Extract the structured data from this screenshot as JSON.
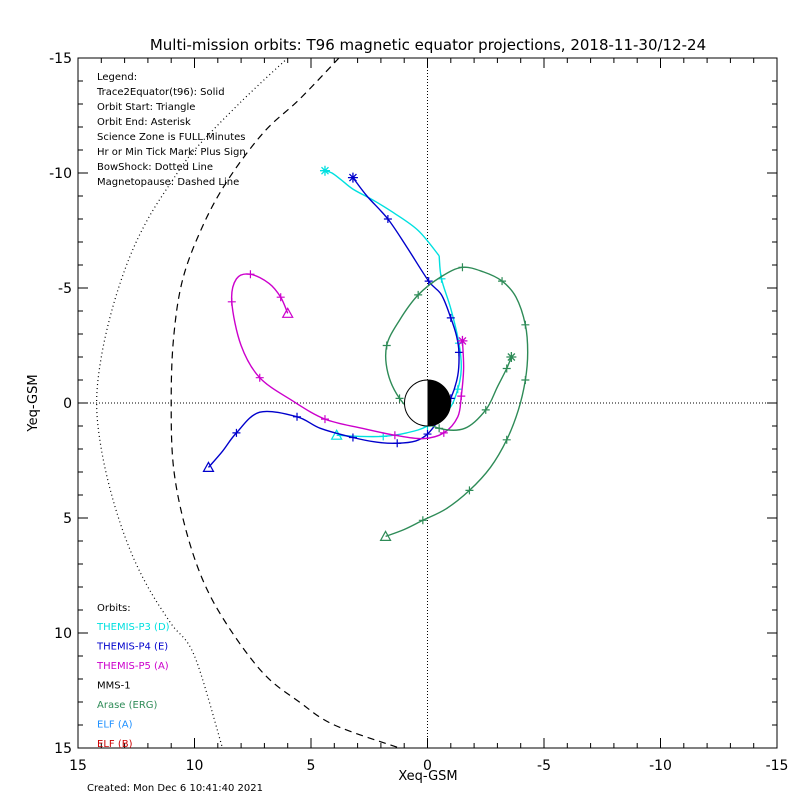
{
  "chart_data": {
    "type": "line",
    "title": "Multi-mission orbits: T96 magnetic equator projections, 2018-11-30/12-24",
    "xlabel": "Xeq-GSM",
    "ylabel": "Yeq-GSM",
    "xlim": [
      15,
      -15
    ],
    "ylim": [
      -15,
      15
    ],
    "x_ticks": [
      "15",
      "10",
      "5",
      "0",
      "-5",
      "-10",
      "-15"
    ],
    "y_ticks": [
      "-15",
      "-10",
      "-5",
      "0",
      "5",
      "10",
      "15"
    ],
    "created": "Created: Mon Dec  6 10:41:40 2021",
    "legend_lines": [
      "Legend:",
      "Trace2Equator(t96): Solid",
      "Orbit Start: Triangle",
      "Orbit End: Asterisk",
      "Science Zone is FULL Minutes",
      "Hr or Min Tick Mark: Plus Sign",
      "BowShock: Dotted Line",
      "Magnetopause: Dashed Line"
    ],
    "orbits_header": "Orbits:",
    "orbits_legend": [
      {
        "label": "THEMIS-P3 (D)",
        "color": "#00e0e0"
      },
      {
        "label": "THEMIS-P4 (E)",
        "color": "#0000cc"
      },
      {
        "label": "THEMIS-P5 (A)",
        "color": "#cc00cc"
      },
      {
        "label": "MMS-1",
        "color": "#000000"
      },
      {
        "label": "Arase (ERG)",
        "color": "#2e8b57"
      },
      {
        "label": "ELF (A)",
        "color": "#1e90ff"
      },
      {
        "label": "ELF (B)",
        "color": "#cc0000"
      }
    ],
    "boundaries": {
      "bowshock": {
        "style": "dotted",
        "color": "#000000",
        "x": [
          6.0,
          8.0,
          10.0,
          11.0,
          12.0,
          12.8,
          13.5,
          14.0,
          14.2,
          14.0,
          13.5,
          12.8,
          12.0,
          11.0,
          10.0,
          8.8
        ],
        "y": [
          -15.0,
          -13.1,
          -11.0,
          -9.6,
          -8.0,
          -6.3,
          -4.2,
          -2.0,
          0.0,
          2.0,
          4.2,
          6.3,
          8.0,
          9.6,
          11.0,
          15.0
        ]
      },
      "magnetopause": {
        "style": "dashed",
        "color": "#000000",
        "x": [
          3.8,
          5.5,
          7.0,
          8.5,
          9.6,
          10.5,
          10.9,
          11.0,
          10.9,
          10.4,
          9.6,
          8.5,
          7.0,
          5.5,
          4.0,
          1.2
        ],
        "y": [
          -15.0,
          -13.2,
          -11.8,
          -9.8,
          -7.8,
          -5.4,
          -2.8,
          0.0,
          2.8,
          5.4,
          7.8,
          9.8,
          11.8,
          13.0,
          14.0,
          15.0
        ]
      }
    },
    "series": [
      {
        "name": "THEMIS-P3 (D)",
        "color": "#00e0e0",
        "x": [
          3.9,
          3.0,
          1.9,
          0.9,
          0.0,
          -0.9,
          -1.3,
          -1.45,
          -1.35,
          -1.0,
          -0.6,
          -0.5
        ],
        "y": [
          1.4,
          1.45,
          1.45,
          1.3,
          1.0,
          0.3,
          -0.6,
          -1.5,
          -2.6,
          -4.1,
          -5.4,
          -6.4
        ],
        "cont_x": [
          -0.5,
          0.4,
          1.5,
          2.3,
          3.2,
          3.7,
          4.1,
          4.4
        ],
        "cont_y": [
          -6.4,
          -7.5,
          -8.3,
          -8.8,
          -9.3,
          -9.7,
          -10.0,
          -10.1
        ],
        "start": [
          3.9,
          1.4
        ],
        "end": [
          4.4,
          -10.1
        ]
      },
      {
        "name": "THEMIS-P4 (E)",
        "color": "#0000cc",
        "x": [
          9.4,
          8.8,
          8.2,
          7.2,
          5.6,
          4.6,
          3.2,
          2.2,
          1.3,
          0.5,
          0.0,
          -0.5,
          -1.0,
          -1.3,
          -1.35,
          -1.25,
          -1.0,
          -0.6,
          -0.05,
          0.9,
          1.7,
          2.6,
          3.2
        ],
        "y": [
          2.8,
          2.1,
          1.3,
          0.4,
          0.6,
          1.1,
          1.5,
          1.7,
          1.75,
          1.65,
          1.35,
          0.7,
          -0.2,
          -1.2,
          -2.2,
          -2.9,
          -3.7,
          -4.7,
          -5.3,
          -6.8,
          -8.0,
          -9.0,
          -9.8
        ],
        "start": [
          9.4,
          2.8
        ],
        "end": [
          3.2,
          -9.8
        ]
      },
      {
        "name": "THEMIS-P5 (A)",
        "color": "#cc00cc",
        "x": [
          -1.5,
          -1.55,
          -1.45,
          -1.3,
          -0.7,
          0.2,
          1.4,
          2.8,
          4.4,
          5.8,
          7.2,
          8.0,
          8.4,
          8.2,
          7.6,
          6.8,
          6.3,
          6.0
        ],
        "y": [
          -2.7,
          -1.5,
          -0.3,
          0.6,
          1.3,
          1.55,
          1.4,
          1.1,
          0.7,
          -0.1,
          -1.1,
          -2.5,
          -4.4,
          -5.4,
          -5.6,
          -5.2,
          -4.6,
          -3.9
        ],
        "start": [
          6.0,
          -3.9
        ],
        "end": [
          -1.5,
          -2.7
        ]
      },
      {
        "name": "Arase (ERG)",
        "color": "#2e8b57",
        "x": [
          1.8,
          1.0,
          0.2,
          -0.8,
          -1.8,
          -2.7,
          -3.4,
          -3.9,
          -4.2,
          -4.3,
          -4.2,
          -3.8,
          -3.2,
          -2.4,
          -1.5,
          -0.6,
          0.4,
          1.2,
          1.75,
          1.7,
          1.2,
          0.4,
          -0.5,
          -1.6,
          -2.5,
          -3.0,
          -3.4,
          -3.6
        ],
        "y": [
          5.8,
          5.5,
          5.1,
          4.6,
          3.8,
          2.8,
          1.6,
          0.3,
          -1.0,
          -2.2,
          -3.4,
          -4.6,
          -5.3,
          -5.7,
          -5.9,
          -5.5,
          -4.7,
          -3.6,
          -2.5,
          -1.3,
          -0.2,
          0.6,
          1.1,
          1.1,
          0.3,
          -0.7,
          -1.5,
          -2.0
        ],
        "start": [
          1.8,
          5.8
        ],
        "end": [
          -3.6,
          -2.0
        ]
      }
    ]
  }
}
